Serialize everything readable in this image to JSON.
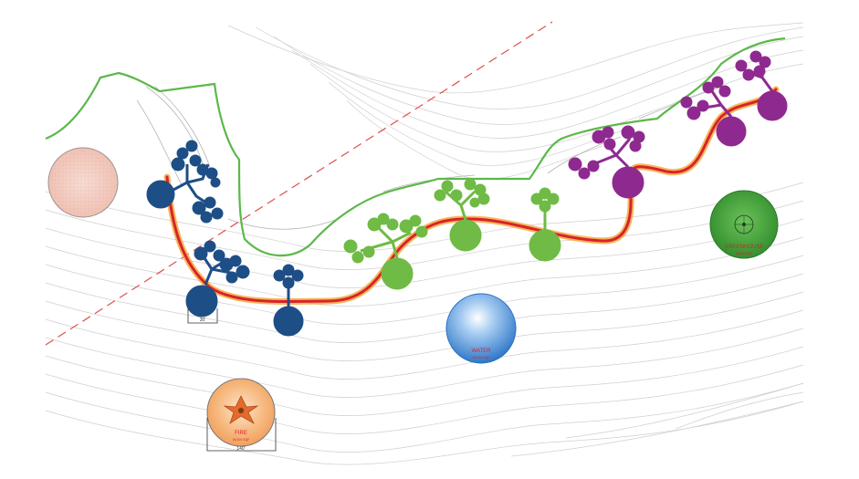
{
  "labels": {
    "greenhouse_title": "GREENHOUSE",
    "greenhouse_sub": "28,000 SQF",
    "water_title": "WATER",
    "water_sub": "35,000 SQF",
    "fire_title": "FIRE",
    "fire_sub": "26,000 SQF",
    "scale_small": "30'",
    "scale_large": "140'"
  },
  "colors": {
    "blue_cluster": "#1e4e86",
    "green_cluster": "#6fbb45",
    "purple_cluster": "#8e2a8f",
    "path_red": "#d8232a",
    "path_orange": "#f4a533",
    "ridge_green": "#5cb84a",
    "red_dashed_line": "#e0504a",
    "pink_circle": "#f6d2c8",
    "greenhouse": "#3f9b36",
    "water": "#3a86d1",
    "fire": "#f2a45e"
  }
}
